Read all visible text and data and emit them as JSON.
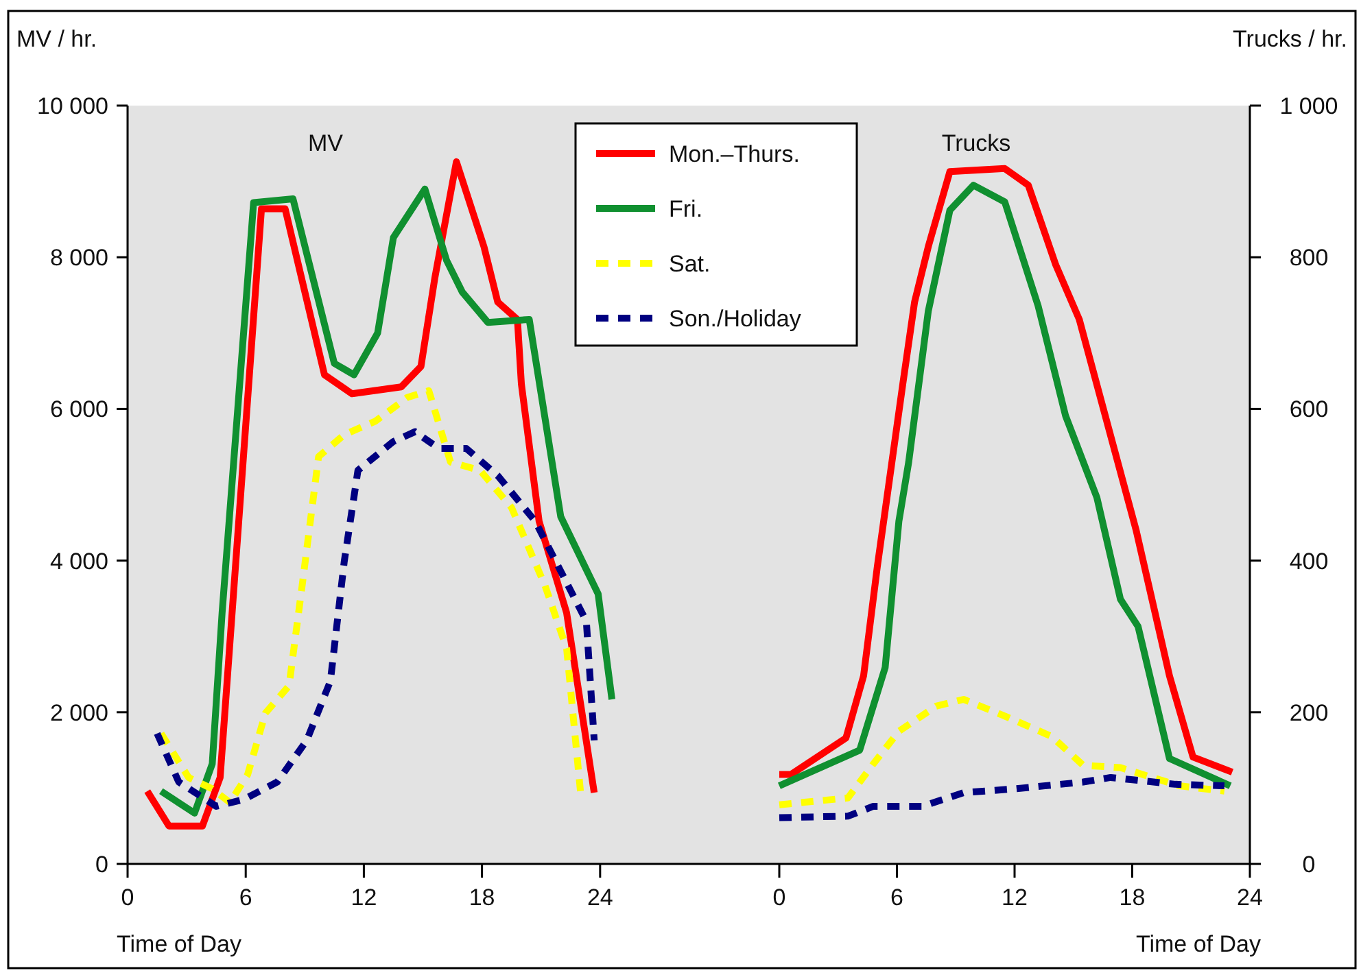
{
  "chart_data": [
    {
      "type": "line",
      "title": "MV",
      "ylabel": "MV / hr.",
      "xlabel": "Time of Day",
      "xlim": [
        0,
        33.1
      ],
      "xticks": [
        0,
        6,
        12,
        18,
        24
      ],
      "ylim": [
        0,
        10000
      ],
      "yticks": [
        {
          "value": 0,
          "label": "0"
        },
        {
          "value": 2000,
          "label": "2 000"
        },
        {
          "value": 4000,
          "label": "4 000"
        },
        {
          "value": 6000,
          "label": "6 000"
        },
        {
          "value": 8000,
          "label": "8 000"
        },
        {
          "value": 10000,
          "label": "10 000"
        }
      ],
      "grid": false,
      "legend": "top",
      "marker": "none",
      "series": [
        {
          "name": "Mon.–Thurs.",
          "color": "#ff0000",
          "line_style": "solid",
          "x": [
            1,
            2.1,
            3.8,
            4.7,
            6.8,
            8.0,
            10,
            11.4,
            13.9,
            14.9,
            15.6,
            16.7,
            18.1,
            18.8,
            19.8,
            20,
            20.9,
            22.3,
            23.7
          ],
          "values": [
            960,
            500,
            500,
            1140,
            8640,
            8640,
            6450,
            6200,
            6290,
            6560,
            7720,
            9260,
            8140,
            7410,
            7180,
            6330,
            4520,
            3310,
            940
          ]
        },
        {
          "name": "Fri.",
          "color": "#109030",
          "line_style": "solid",
          "x": [
            1.7,
            3.4,
            4.3,
            4.8,
            6.4,
            8.4,
            10.5,
            11.5,
            12.7,
            13.5,
            15.1,
            16.2,
            17.0,
            18.3,
            20.4,
            22.0,
            23.9,
            24.6
          ],
          "values": [
            960,
            670,
            1320,
            3310,
            8720,
            8770,
            6600,
            6450,
            7000,
            8260,
            8900,
            7960,
            7540,
            7140,
            7180,
            4580,
            3560,
            2170
          ]
        },
        {
          "name": "Sat.",
          "color": "#ffff00",
          "line_style": "dashed",
          "x": [
            1.7,
            3.1,
            4.3,
            5.2,
            6.1,
            7.0,
            8.2,
            8.9,
            9.7,
            11.0,
            12.6,
            14.2,
            15.3,
            16.4,
            17.9,
            19.5,
            21.2,
            22.3,
            23.0
          ],
          "values": [
            1720,
            1140,
            990,
            810,
            1180,
            1990,
            2350,
            3740,
            5370,
            5660,
            5840,
            6150,
            6240,
            5300,
            5190,
            4700,
            3670,
            2840,
            960
          ]
        },
        {
          "name": "Son./Holiday",
          "color": "#000080",
          "line_style": "dashed",
          "x": [
            1.5,
            2.6,
            4.5,
            5.9,
            7.6,
            9.1,
            10.3,
            11.0,
            11.7,
            13.5,
            14.6,
            15.8,
            17.2,
            18.8,
            20.7,
            23.3,
            23.7
          ],
          "values": [
            1720,
            1080,
            760,
            850,
            1080,
            1630,
            2410,
            3980,
            5190,
            5570,
            5700,
            5480,
            5480,
            5120,
            4520,
            3200,
            1630
          ]
        }
      ]
    },
    {
      "type": "line",
      "title": "Trucks",
      "y2label": "Trucks / hr.",
      "xlabel": "Time of Day",
      "xlim": [
        0,
        24
      ],
      "xticks": [
        0,
        6,
        12,
        18,
        24
      ],
      "y2lim": [
        0,
        1000
      ],
      "y2ticks": [
        {
          "value": 0,
          "label": "0"
        },
        {
          "value": 200,
          "label": "200"
        },
        {
          "value": 400,
          "label": "400"
        },
        {
          "value": 600,
          "label": "600"
        },
        {
          "value": 800,
          "label": "800"
        },
        {
          "value": 1000,
          "label": "1 000"
        }
      ],
      "grid": false,
      "legend": false,
      "marker": "none",
      "series": [
        {
          "color": "#ff0000",
          "line_style": "solid",
          "axis": "y2",
          "x": [
            0,
            0.6,
            3.4,
            4.3,
            5.0,
            6.3,
            6.9,
            7.6,
            8.7,
            10.1,
            11.5,
            12.7,
            14.1,
            15.3,
            18.2,
            19.9,
            21.1,
            23.1
          ],
          "values": [
            118,
            118,
            166,
            248,
            392,
            633,
            741,
            814,
            913,
            915,
            917,
            895,
            790,
            718,
            440,
            248,
            141,
            121
          ]
        },
        {
          "color": "#109030",
          "line_style": "solid",
          "axis": "y2",
          "x": [
            0,
            4.1,
            5.4,
            6.1,
            6.6,
            7.6,
            8.7,
            9.9,
            11.5,
            13.2,
            14.6,
            16.2,
            17.4,
            18.3,
            19.9,
            23.0
          ],
          "values": [
            103,
            150,
            259,
            452,
            530,
            729,
            862,
            895,
            873,
            736,
            591,
            483,
            349,
            313,
            139,
            103
          ]
        },
        {
          "color": "#ffff00",
          "line_style": "dashed",
          "axis": "y2",
          "x": [
            0,
            3.5,
            4.8,
            6.1,
            8.0,
            9.4,
            11.5,
            13.9,
            15.5,
            17.4,
            20.4,
            22.7
          ],
          "values": [
            78,
            87,
            132,
            175,
            208,
            217,
            195,
            168,
            130,
            127,
            103,
            96
          ]
        },
        {
          "color": "#000080",
          "line_style": "dashed",
          "axis": "y2",
          "x": [
            0,
            3.5,
            4.8,
            7.3,
            9.4,
            12.0,
            15.5,
            16.9,
            20.2,
            22.7
          ],
          "values": [
            61,
            63,
            76,
            76,
            94,
            99,
            108,
            114,
            105,
            103
          ]
        }
      ]
    }
  ]
}
